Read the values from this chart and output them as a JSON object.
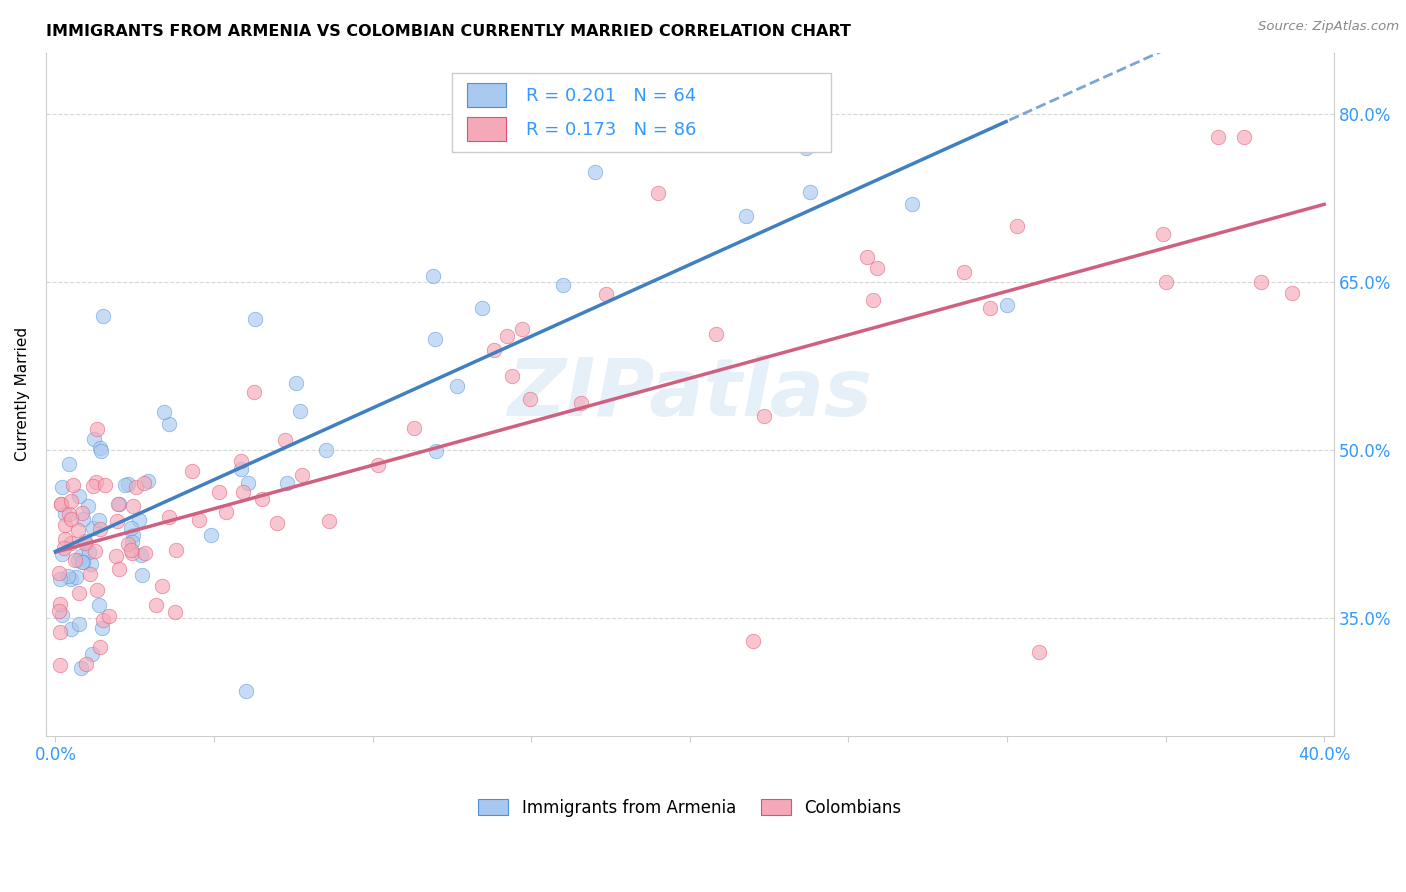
{
  "title": "IMMIGRANTS FROM ARMENIA VS COLOMBIAN CURRENTLY MARRIED CORRELATION CHART",
  "source": "Source: ZipAtlas.com",
  "ylabel": "Currently Married",
  "yticks": [
    0.35,
    0.5,
    0.65,
    0.8
  ],
  "ytick_labels": [
    "35.0%",
    "50.0%",
    "65.0%",
    "80.0%"
  ],
  "xlim": [
    -0.003,
    0.403
  ],
  "ylim": [
    0.245,
    0.855
  ],
  "legend1_text": "R = 0.201   N = 64",
  "legend2_text": "R = 0.173   N = 86",
  "color_armenia": "#a8c8f0",
  "color_colombia": "#f4a8b8",
  "edge_armenia": "#5090d0",
  "edge_colombia": "#e05070",
  "line_armenia": "#4080c0",
  "line_colombia": "#d06080",
  "text_blue": "#3399ff",
  "watermark": "ZIPatlas",
  "grid_color": "#cccccc",
  "note_r_color": "#3399ff",
  "note_n_color": "#3399ff"
}
